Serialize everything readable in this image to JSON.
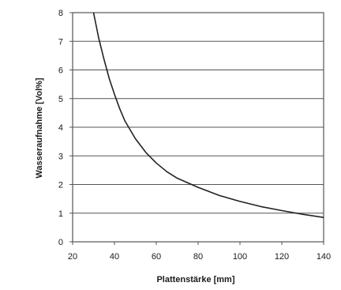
{
  "chart_data": {
    "type": "line",
    "title": "",
    "xlabel": "Plattenstärke [mm]",
    "ylabel": "Wasseraufnahme [Vol%]",
    "xlim": [
      20,
      140
    ],
    "ylim": [
      0,
      8
    ],
    "x_ticks": [
      "20",
      "40",
      "60",
      "80",
      "100",
      "120",
      "140"
    ],
    "y_ticks": [
      "0",
      "1",
      "2",
      "3",
      "4",
      "5",
      "6",
      "7",
      "8"
    ],
    "grid": "horizontal",
    "legend": "none",
    "series": [
      {
        "x": [
          30,
          32.5,
          35,
          37.5,
          40,
          42.5,
          45,
          50,
          55,
          60,
          65,
          70,
          80,
          90,
          100,
          110,
          120,
          130,
          140
        ],
        "y": [
          8.0,
          7.1,
          6.37,
          5.7,
          5.15,
          4.65,
          4.22,
          3.6,
          3.12,
          2.75,
          2.45,
          2.22,
          1.9,
          1.62,
          1.41,
          1.23,
          1.09,
          0.96,
          0.85
        ]
      }
    ],
    "colors": {
      "line": "#222222",
      "grid": "#555555",
      "frame": "#555555"
    }
  }
}
